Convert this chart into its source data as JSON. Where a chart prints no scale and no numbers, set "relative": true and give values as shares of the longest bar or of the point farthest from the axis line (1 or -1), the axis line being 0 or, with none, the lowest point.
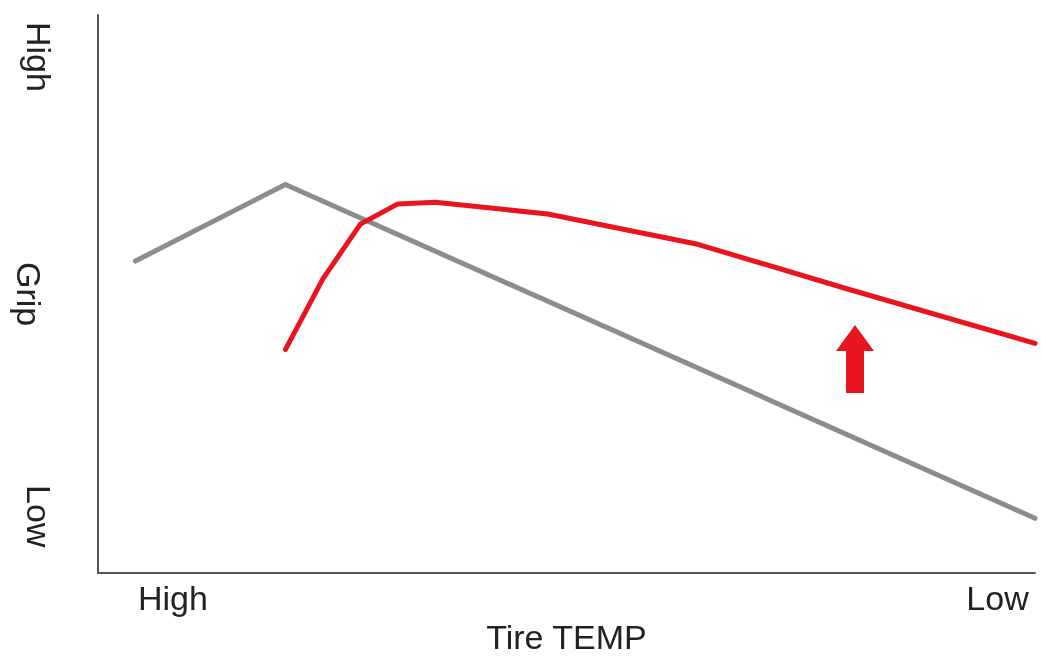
{
  "chart_data": {
    "type": "line",
    "xlabel": "Tire TEMP",
    "ylabel": "Grip",
    "relative": true,
    "categories": [
      null,
      null,
      "High",
      null,
      null,
      null,
      null,
      null,
      null,
      null,
      null,
      null,
      null,
      null,
      null,
      null,
      null,
      null,
      null,
      null,
      null,
      null,
      null,
      null,
      "Low",
      null
    ],
    "annotations": [
      "High",
      "Low"
    ],
    "marker": "none",
    "line_style": "solid",
    "grid": false,
    "series": [
      {
        "color": "#8c8c8c",
        "values": [
          null,
          0.803,
          null,
          null,
          null,
          1,
          null,
          null,
          null,
          null,
          null,
          null,
          null,
          null,
          null,
          null,
          null,
          null,
          null,
          null,
          null,
          null,
          null,
          null,
          null,
          0.141
        ]
      },
      {
        "color": "#e8141e",
        "values": [
          null,
          null,
          null,
          null,
          null,
          0.575,
          0.757,
          0.898,
          0.95,
          0.954,
          null,
          null,
          0.924,
          null,
          null,
          null,
          0.846,
          null,
          null,
          null,
          0.731,
          null,
          null,
          null,
          null,
          0.591
        ]
      }
    ]
  }
}
